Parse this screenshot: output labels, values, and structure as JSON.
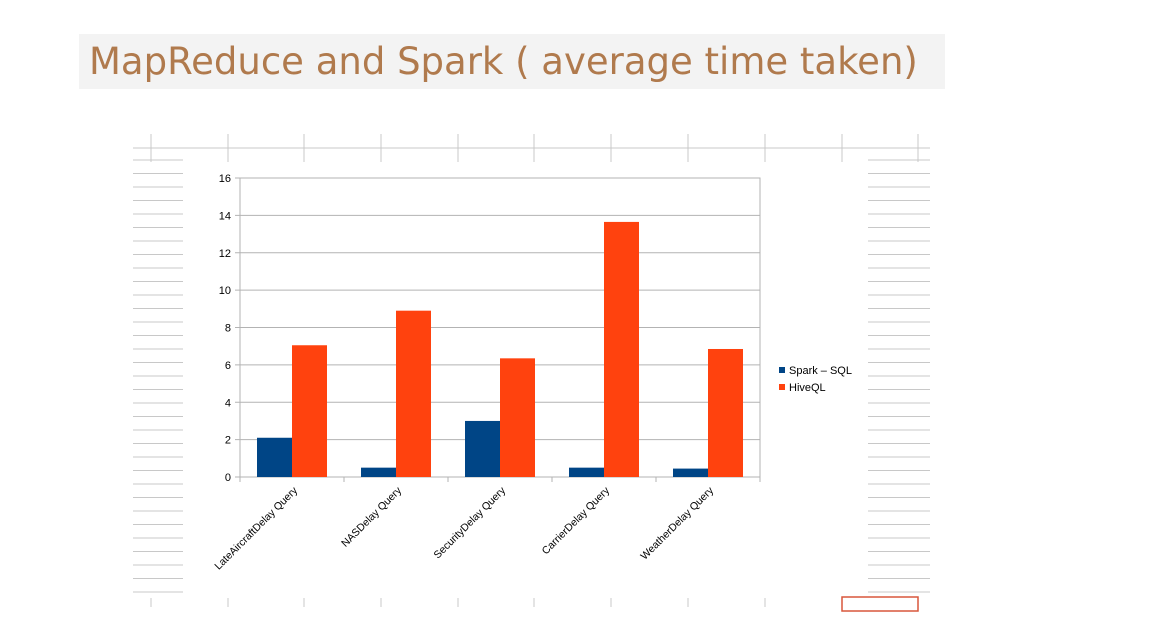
{
  "slide": {
    "title": "MapReduce and Spark ( average time taken)"
  },
  "chart_data": {
    "type": "bar",
    "categories": [
      "LateAircraftDelay Query",
      "NASDelay Query",
      "SecurityDelay Query",
      "CarrierDelay Query",
      "WeatherDelay Query"
    ],
    "series": [
      {
        "name": "Spark – SQL",
        "color": "#004586",
        "values": [
          2.1,
          0.5,
          3.0,
          0.5,
          0.45
        ]
      },
      {
        "name": "HiveQL",
        "color": "#ff420e",
        "values": [
          7.05,
          8.9,
          6.35,
          13.65,
          6.85
        ]
      }
    ],
    "ylim": [
      0,
      16
    ],
    "yticks": [
      0,
      2,
      4,
      6,
      8,
      10,
      12,
      14,
      16
    ],
    "grid": true,
    "legend": "right",
    "xlabel": "",
    "ylabel": ""
  }
}
